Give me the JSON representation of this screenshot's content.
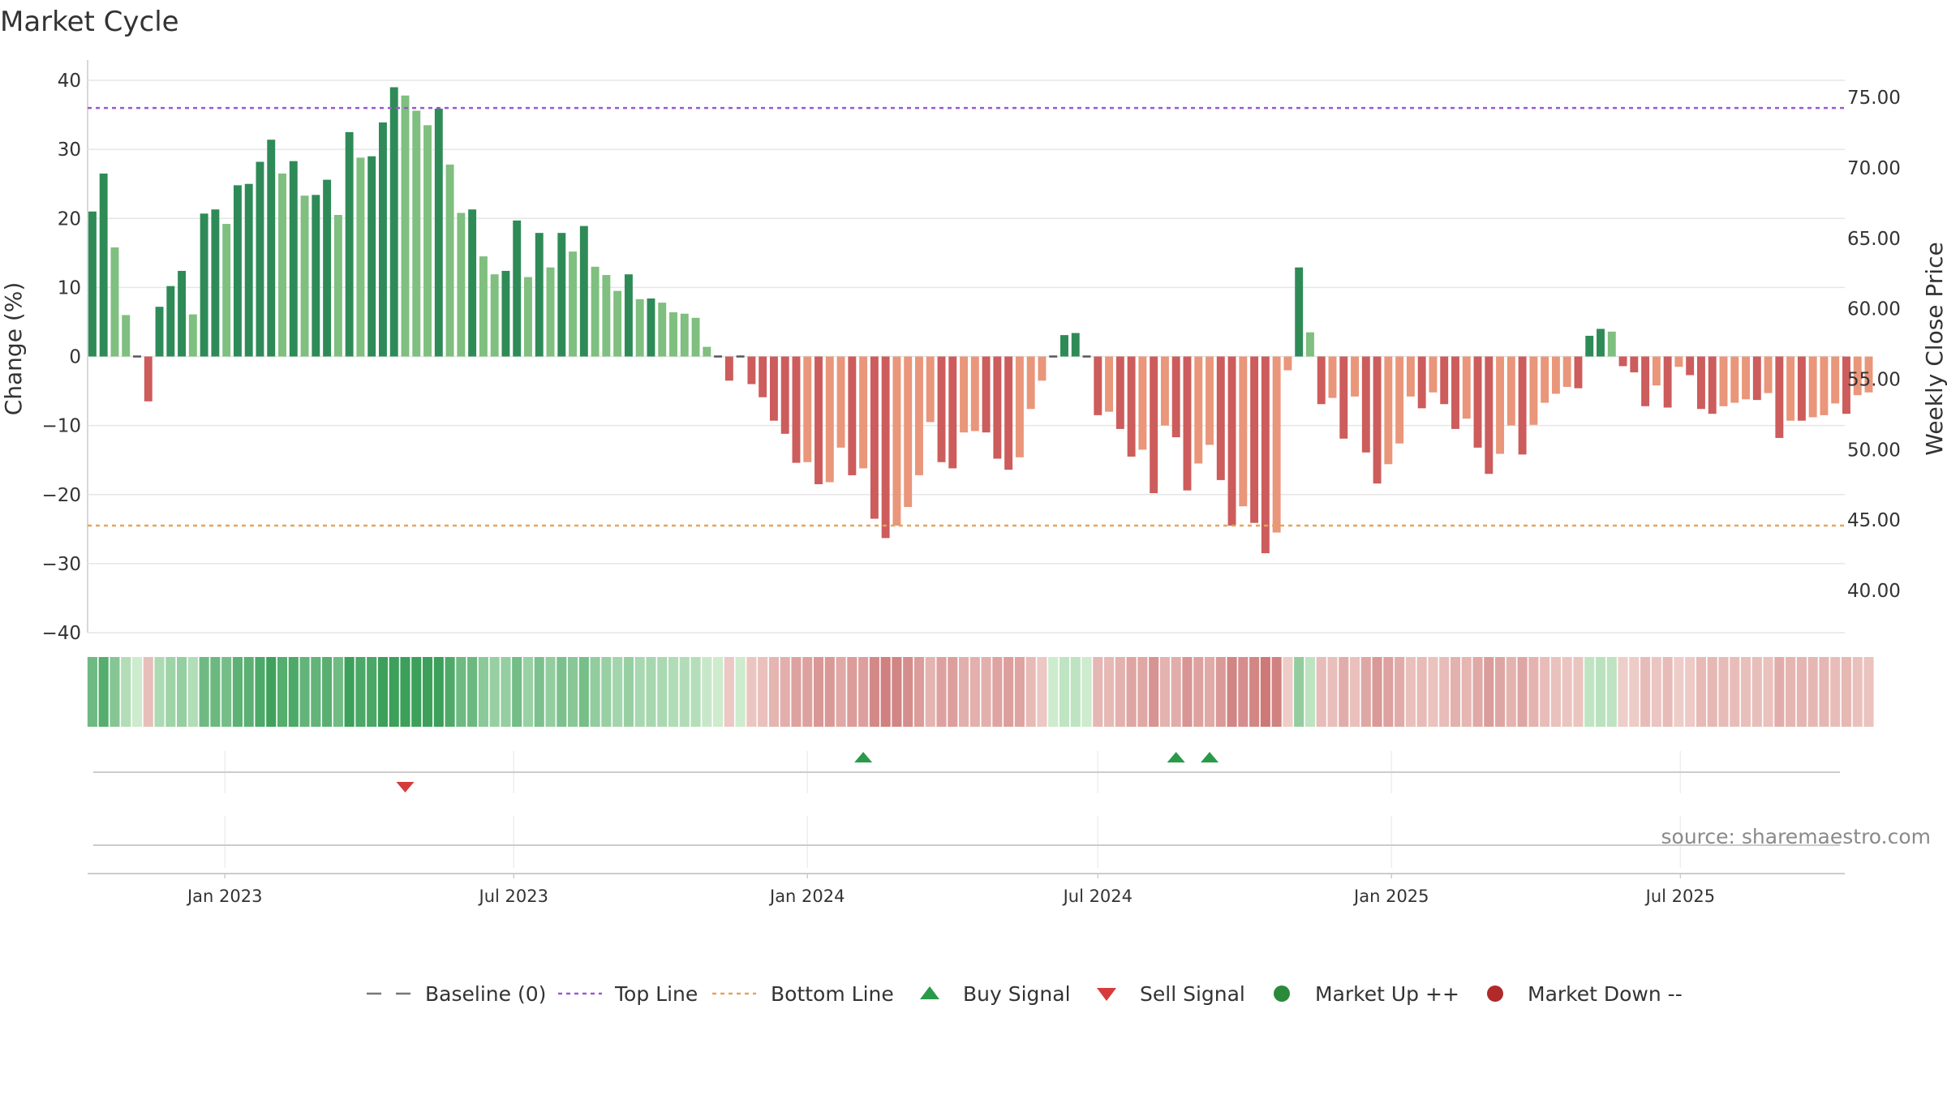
{
  "chart_data": {
    "type": "bar",
    "title": "Market Cycle",
    "ylabel": "Change (%)",
    "y2label": "Weekly Close Price",
    "ylim": [
      -40,
      42
    ],
    "yticks": [
      40,
      30,
      20,
      10,
      0,
      -10,
      -20,
      -30,
      -40
    ],
    "ytick_labels": [
      "40",
      "30",
      "20",
      "10",
      "0",
      "−10",
      "−20",
      "−30",
      "−40"
    ],
    "y2lim": [
      37.0,
      77.2
    ],
    "y2ticks": [
      75,
      70,
      65,
      60,
      55,
      50,
      45,
      40
    ],
    "y2tick_labels": [
      "75.00",
      "70.00",
      "65.00",
      "60.00",
      "55.00",
      "50.00",
      "45.00",
      "40.00"
    ],
    "x_start": "2022-10-07",
    "x_end": "2025-10-12",
    "x_tick_dates": [
      "2023-01-01",
      "2023-07-01",
      "2024-01-01",
      "2024-07-01",
      "2025-01-01",
      "2025-07-01"
    ],
    "x_tick_labels": [
      "Jan 2023",
      "Jul 2023",
      "Jan 2024",
      "Jul 2024",
      "Jan 2025",
      "Jul 2025"
    ],
    "grid": true,
    "top_line": 36,
    "bottom_line": -24.5,
    "first_week": "2022-10-10",
    "values": [
      21,
      26.5,
      15.8,
      6,
      0,
      -6.5,
      7.2,
      10.2,
      12.4,
      6.1,
      20.7,
      21.3,
      19.2,
      24.8,
      25.0,
      28.2,
      31.4,
      26.5,
      28.3,
      23.3,
      23.4,
      25.6,
      20.5,
      32.5,
      28.8,
      29.0,
      33.9,
      39,
      37.8,
      35.6,
      33.5,
      35.9,
      27.8,
      20.8,
      21.3,
      14.5,
      11.9,
      12.4,
      19.7,
      11.5,
      17.9,
      12.9,
      17.9,
      15.2,
      18.9,
      13.0,
      11.8,
      9.5,
      11.9,
      8.3,
      8.4,
      7.8,
      6.4,
      6.2,
      5.6,
      1.4,
      0,
      -3.5,
      0,
      -4.0,
      -5.9,
      -9.3,
      -11.2,
      -15.4,
      -15.3,
      -18.5,
      -18.2,
      -13.2,
      -17.2,
      -16.2,
      -23.5,
      -26.3,
      -24.5,
      -21.8,
      -17.2,
      -9.5,
      -15.3,
      -16.2,
      -11.0,
      -10.8,
      -11.0,
      -14.8,
      -16.4,
      -14.6,
      -7.6,
      -3.5,
      0,
      3.1,
      3.4,
      0,
      -8.5,
      -8.0,
      -10.5,
      -14.5,
      -13.5,
      -19.8,
      -10.0,
      -11.7,
      -19.4,
      -15.5,
      -12.8,
      -17.9,
      -24.5,
      -21.7,
      -24.1,
      -28.5,
      -25.5,
      -2.0,
      12.9,
      3.5,
      -6.9,
      -6.0,
      -11.9,
      -5.8,
      -13.9,
      -18.4,
      -15.6,
      -12.6,
      -5.8,
      -7.5,
      -5.2,
      -6.9,
      -10.5,
      -9.0,
      -13.2,
      -17.0,
      -14.1,
      -10.0,
      -14.2,
      -9.9,
      -6.7,
      -5.4,
      -4.4,
      -4.6,
      3.0,
      4.0,
      3.6,
      -1.4,
      -2.3,
      -7.2,
      -4.2,
      -7.4,
      -1.5,
      -2.7,
      -7.6,
      -8.3,
      -7.2,
      -6.7,
      -6.2,
      -6.3,
      -5.3,
      -11.8,
      -9.3,
      -9.3,
      -8.8,
      -8.5,
      -6.8,
      -8.3,
      -5.6,
      -5.2
    ],
    "series": [
      {
        "name": "Baseline (0)",
        "style": "dash",
        "color": "#777777"
      },
      {
        "name": "Top Line",
        "style": "dotted",
        "color": "#9b59d0"
      },
      {
        "name": "Bottom Line",
        "style": "dotted",
        "color": "#e5a55a"
      },
      {
        "name": "Buy Signal",
        "marker": "triangle-up",
        "color": "#2a9a4a",
        "dates": [
          "2024-02-05",
          "2024-08-19",
          "2024-09-09"
        ]
      },
      {
        "name": "Sell Signal",
        "marker": "triangle-down",
        "color": "#d63a3a",
        "dates": [
          "2023-04-24"
        ]
      },
      {
        "name": "Market Up ++",
        "marker": "circle",
        "color": "#2a8a3a",
        "dates": []
      },
      {
        "name": "Market Down --",
        "marker": "circle",
        "color": "#b02a2a",
        "dates": []
      }
    ],
    "legend_position": "bottom",
    "colors": {
      "up_strong": "#2e8b57",
      "up_weak": "#7fbf7f",
      "down_strong": "#cd5c5c",
      "down_weak": "#e9967a",
      "grid": "#e6e6e6"
    },
    "source_text": "source: sharemaestro.com"
  }
}
